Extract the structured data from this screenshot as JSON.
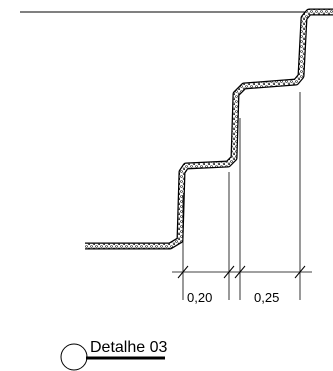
{
  "drawing": {
    "dimensions": [
      {
        "label": "0,20"
      },
      {
        "label": "0,25"
      }
    ],
    "detail_title": "Detalhe 03",
    "colors": {
      "line": "#000000",
      "background": "#ffffff"
    }
  }
}
